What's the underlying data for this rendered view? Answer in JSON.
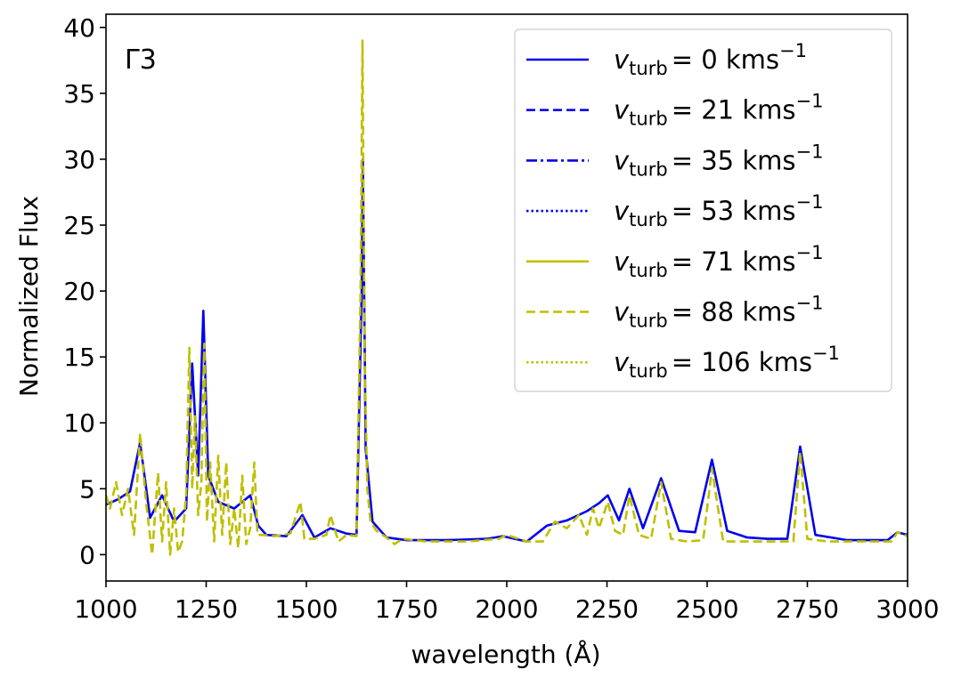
{
  "chart_data": {
    "type": "line",
    "panel_label": "Γ3",
    "xlabel": "wavelength (Å)",
    "ylabel": "Normalized Flux",
    "xlim": [
      1000,
      3000
    ],
    "ylim": [
      -2,
      41
    ],
    "xticks": [
      1000,
      1250,
      1500,
      1750,
      2000,
      2250,
      2500,
      2750,
      3000
    ],
    "yticks": [
      0,
      5,
      10,
      15,
      20,
      25,
      30,
      35,
      40
    ],
    "grid": false,
    "legend_position": "top-right",
    "colors": {
      "blue": "#0000ee",
      "olive": "#bfbf00"
    },
    "series": [
      {
        "name": "v_turb = 0 kms⁻¹",
        "legend_main": "v",
        "legend_sub": "turb",
        "legend_value": "= 0 kms",
        "legend_sup": "−1",
        "color": "#0000ee",
        "linestyle": "solid",
        "x": [
          1000,
          1030,
          1060,
          1085,
          1110,
          1140,
          1170,
          1200,
          1215,
          1230,
          1243,
          1255,
          1280,
          1320,
          1360,
          1380,
          1400,
          1450,
          1490,
          1520,
          1560,
          1600,
          1625,
          1638,
          1641,
          1648,
          1665,
          1700,
          1750,
          1850,
          1950,
          1990,
          2050,
          2100,
          2150,
          2200,
          2230,
          2252,
          2280,
          2306,
          2340,
          2385,
          2430,
          2470,
          2512,
          2550,
          2600,
          2650,
          2700,
          2732,
          2770,
          2850,
          2950,
          2975,
          3000
        ],
        "y": [
          3.8,
          4.2,
          4.8,
          8.5,
          2.8,
          4.5,
          2.5,
          3.5,
          14.5,
          6.0,
          18.5,
          6.0,
          4.0,
          3.5,
          4.5,
          2.2,
          1.5,
          1.4,
          3.0,
          1.3,
          2.0,
          1.6,
          1.5,
          20.0,
          30.0,
          8.0,
          2.5,
          1.3,
          1.1,
          1.1,
          1.2,
          1.4,
          1.0,
          2.2,
          2.6,
          3.3,
          3.9,
          4.5,
          2.6,
          5.0,
          2.0,
          5.8,
          1.8,
          1.7,
          7.2,
          1.8,
          1.3,
          1.2,
          1.2,
          8.2,
          1.5,
          1.1,
          1.1,
          1.7,
          1.5
        ]
      },
      {
        "name": "v_turb = 21 kms⁻¹",
        "legend_main": "v",
        "legend_sub": "turb",
        "legend_value": "= 21 kms",
        "legend_sup": "−1",
        "color": "#0000ee",
        "linestyle": "dashed",
        "x": [],
        "y": []
      },
      {
        "name": "v_turb = 35 kms⁻¹",
        "legend_main": "v",
        "legend_sub": "turb",
        "legend_value": "= 35 kms",
        "legend_sup": "−1",
        "color": "#0000ee",
        "linestyle": "dashdot",
        "x": [],
        "y": []
      },
      {
        "name": "v_turb = 53 kms⁻¹",
        "legend_main": "v",
        "legend_sub": "turb",
        "legend_value": "= 53 kms",
        "legend_sup": "−1",
        "color": "#0000ee",
        "linestyle": "dotted",
        "x": [],
        "y": []
      },
      {
        "name": "v_turb = 71 kms⁻¹",
        "legend_main": "v",
        "legend_sub": "turb",
        "legend_value": "= 71 kms",
        "legend_sup": "−1",
        "color": "#bfbf00",
        "linestyle": "solid",
        "x": [],
        "y": []
      },
      {
        "name": "v_turb = 88 kms⁻¹",
        "legend_main": "v",
        "legend_sub": "turb",
        "legend_value": "= 88 kms",
        "legend_sup": "−1",
        "color": "#bfbf00",
        "linestyle": "dashed",
        "x": [
          1000,
          1010,
          1025,
          1040,
          1055,
          1070,
          1085,
          1100,
          1115,
          1130,
          1140,
          1150,
          1160,
          1170,
          1180,
          1190,
          1200,
          1208,
          1215,
          1222,
          1230,
          1238,
          1245,
          1252,
          1260,
          1270,
          1280,
          1290,
          1300,
          1310,
          1320,
          1330,
          1340,
          1350,
          1360,
          1370,
          1378,
          1390,
          1420,
          1460,
          1485,
          1495,
          1520,
          1550,
          1560,
          1580,
          1600,
          1625,
          1635,
          1640,
          1645,
          1652,
          1660,
          1675,
          1700,
          1720,
          1740,
          1800,
          1900,
          1980,
          2000,
          2050,
          2090,
          2120,
          2150,
          2180,
          2200,
          2215,
          2230,
          2252,
          2270,
          2290,
          2306,
          2330,
          2360,
          2385,
          2410,
          2450,
          2490,
          2512,
          2540,
          2580,
          2620,
          2680,
          2715,
          2732,
          2750,
          2800,
          2900,
          2960,
          2975,
          3000
        ],
        "y": [
          4.5,
          3.5,
          5.5,
          3.0,
          5.0,
          1.5,
          9.2,
          4.0,
          0.0,
          6.2,
          1.0,
          5.5,
          0.0,
          3.5,
          0.2,
          1.0,
          4.5,
          15.7,
          5.0,
          10.5,
          3.0,
          5.5,
          16.0,
          2.5,
          7.0,
          1.0,
          7.5,
          1.5,
          7.0,
          0.8,
          3.5,
          0.5,
          6.0,
          0.8,
          2.0,
          7.0,
          1.5,
          1.5,
          1.4,
          1.6,
          4.0,
          1.2,
          1.2,
          1.5,
          3.0,
          1.0,
          1.5,
          1.4,
          20.0,
          39.0,
          15.0,
          5.0,
          2.5,
          1.8,
          1.3,
          0.8,
          1.2,
          1.0,
          1.0,
          1.2,
          1.5,
          1.0,
          1.0,
          2.5,
          2.0,
          3.0,
          1.5,
          3.5,
          2.0,
          4.0,
          1.8,
          1.5,
          4.5,
          1.5,
          1.2,
          5.5,
          1.2,
          1.0,
          1.1,
          6.5,
          1.0,
          1.0,
          1.0,
          1.0,
          1.0,
          7.8,
          1.2,
          1.0,
          1.0,
          1.0,
          1.7,
          1.4
        ]
      },
      {
        "name": "v_turb = 106 kms⁻¹",
        "legend_main": "v",
        "legend_sub": "turb",
        "legend_value": "= 106 kms",
        "legend_sup": "−1",
        "color": "#bfbf00",
        "linestyle": "dotted",
        "x": [],
        "y": []
      }
    ]
  }
}
